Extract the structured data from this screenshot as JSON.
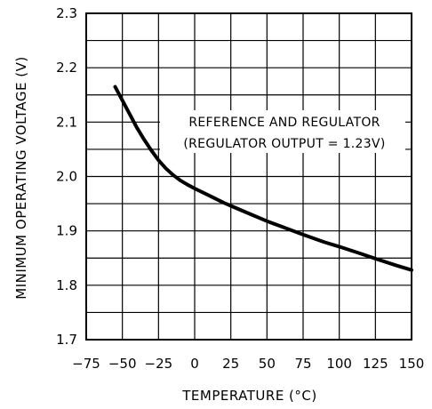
{
  "chart_data": {
    "type": "line",
    "title": "",
    "xlabel": "TEMPERATURE (°C)",
    "ylabel": "MINIMUM OPERATING VOLTAGE (V)",
    "xlim": [
      -75,
      150
    ],
    "ylim": [
      1.7,
      2.3
    ],
    "x_ticks": [
      -75,
      -50,
      -25,
      0,
      25,
      50,
      75,
      100,
      125,
      150
    ],
    "x_tick_labels": [
      "-75",
      "-50",
      "-25",
      "0",
      "25",
      "50",
      "75",
      "100",
      "125",
      "150"
    ],
    "y_ticks": [
      1.7,
      1.8,
      1.9,
      2.0,
      2.1,
      2.2,
      2.3
    ],
    "y_tick_labels": [
      "1.7",
      "1.8",
      "1.9",
      "2.0",
      "2.1",
      "2.2",
      "2.3"
    ],
    "grid": true,
    "annotation": [
      "REFERENCE AND REGULATOR",
      "(REGULATOR OUTPUT = 1.23V)"
    ],
    "series": [
      {
        "x": [
          -55,
          -50,
          -45,
          -40,
          -35,
          -30,
          -25,
          -20,
          -15,
          -10,
          -5,
          0,
          10,
          20,
          25,
          40,
          50,
          60,
          75,
          90,
          100,
          115,
          125,
          140,
          150
        ],
        "y": [
          2.165,
          2.14,
          2.115,
          2.09,
          2.068,
          2.048,
          2.03,
          2.015,
          2.003,
          1.993,
          1.985,
          1.978,
          1.965,
          1.952,
          1.946,
          1.929,
          1.918,
          1.908,
          1.893,
          1.879,
          1.871,
          1.858,
          1.849,
          1.836,
          1.828
        ]
      }
    ]
  }
}
